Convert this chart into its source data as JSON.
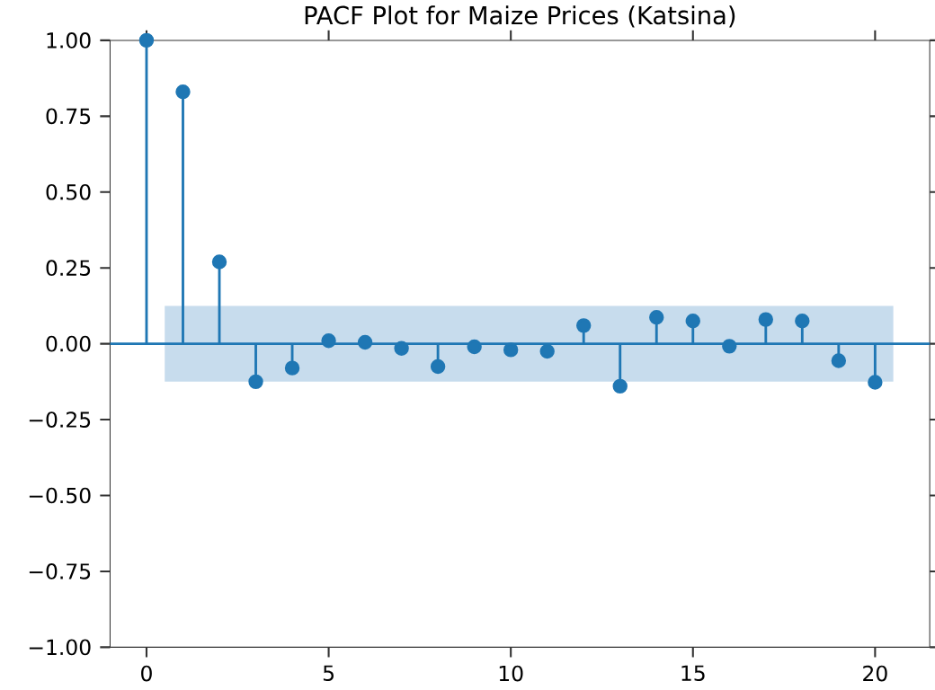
{
  "chart_data": {
    "type": "lollipop",
    "title": "PACF Plot for Maize Prices (Katsina)",
    "x": [
      0,
      1,
      2,
      3,
      4,
      5,
      6,
      7,
      8,
      9,
      10,
      11,
      12,
      13,
      14,
      15,
      16,
      17,
      18,
      19,
      20
    ],
    "values": [
      1.0,
      0.83,
      0.27,
      -0.125,
      -0.08,
      0.01,
      0.005,
      -0.015,
      -0.075,
      -0.01,
      -0.02,
      -0.025,
      0.06,
      -0.14,
      0.087,
      0.075,
      -0.008,
      0.08,
      0.075,
      -0.056,
      -0.127
    ],
    "color": "#1f77b4",
    "marker": "circle",
    "xlim": [
      -1,
      21.5
    ],
    "xticks": [
      0,
      5,
      10,
      15,
      20
    ],
    "ylim": [
      -1,
      1
    ],
    "yticks": [
      {
        "value": -1,
        "label": "−1.00"
      },
      {
        "value": -0.75,
        "label": "−0.75"
      },
      {
        "value": -0.5,
        "label": "−0.50"
      },
      {
        "value": -0.25,
        "label": "−0.25"
      },
      {
        "value": 0,
        "label": "0.00"
      },
      {
        "value": 0.25,
        "label": "0.25"
      },
      {
        "value": 0.5,
        "label": "0.50"
      },
      {
        "value": 0.75,
        "label": "0.75"
      },
      {
        "value": 1,
        "label": "1.00"
      }
    ],
    "ref_lines": [
      {
        "axis": "y",
        "value": 0,
        "color": "#1f77b4"
      }
    ],
    "bands": [
      {
        "axis": "y",
        "from": -0.125,
        "to": 0.125,
        "color": "#c7dced"
      }
    ]
  }
}
